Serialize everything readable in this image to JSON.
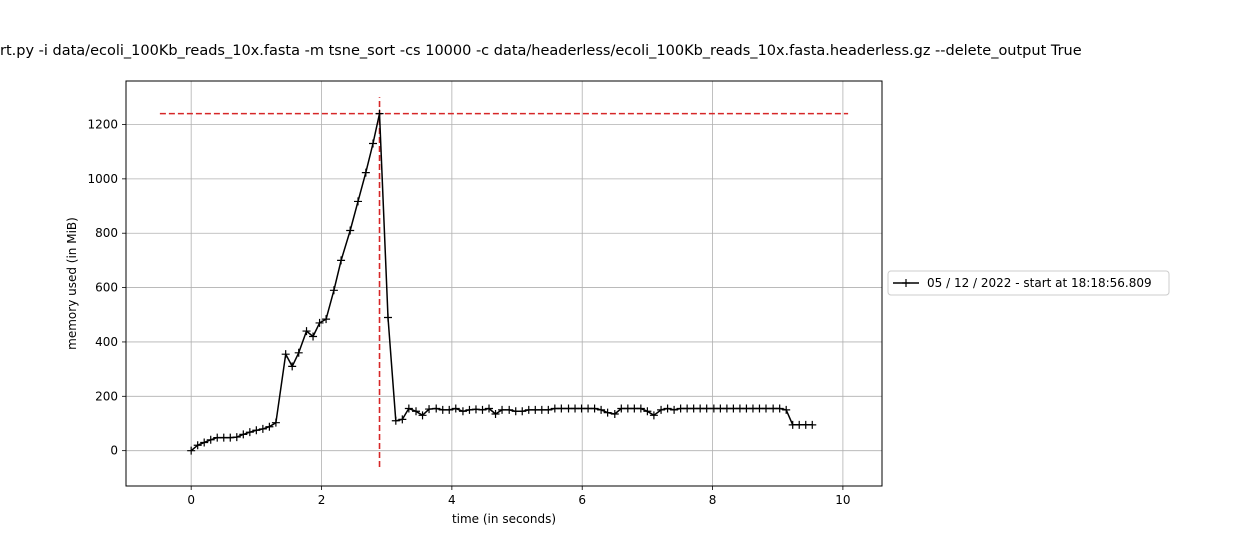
{
  "chart_data": {
    "type": "line",
    "title": "rt.py -i data/ecoli_100Kb_reads_10x.fasta -m tsne_sort -cs 10000 -c data/headerless/ecoli_100Kb_reads_10x.fasta.headerless.gz --delete_output True",
    "xlabel": "time (in seconds)",
    "ylabel": "memory used (in MiB)",
    "xlim": [
      -1.0,
      10.6
    ],
    "ylim": [
      -130,
      1360
    ],
    "xticks": [
      0,
      2,
      4,
      6,
      8,
      10
    ],
    "yticks": [
      0,
      200,
      400,
      600,
      800,
      1000,
      1200
    ],
    "grid": true,
    "legend_position": "right, outside plot",
    "max_memory_line": {
      "y": 1240,
      "x_range": [
        -0.48,
        10.08
      ],
      "color": "#d62728"
    },
    "max_time_line": {
      "x": 2.89,
      "y_range": [
        -60,
        1300
      ],
      "color": "#d62728"
    },
    "series": [
      {
        "name": "05 / 12 / 2022 - start at 18:18:56.809",
        "color": "#000000",
        "marker": "+",
        "x": [
          0.0,
          0.1,
          0.2,
          0.3,
          0.4,
          0.5,
          0.6,
          0.7,
          0.8,
          0.9,
          1.0,
          1.1,
          1.2,
          1.3,
          1.45,
          1.55,
          1.65,
          1.77,
          1.87,
          1.97,
          2.07,
          2.19,
          2.3,
          2.44,
          2.56,
          2.68,
          2.79,
          2.89,
          3.02,
          3.14,
          3.24,
          3.34,
          3.45,
          3.55,
          3.65,
          3.76,
          3.86,
          3.96,
          4.06,
          4.17,
          4.27,
          4.37,
          4.47,
          4.57,
          4.67,
          4.77,
          4.88,
          4.98,
          5.08,
          5.18,
          5.28,
          5.38,
          5.48,
          5.58,
          5.68,
          5.79,
          5.89,
          5.99,
          6.09,
          6.19,
          6.29,
          6.39,
          6.5,
          6.6,
          6.7,
          6.8,
          6.9,
          7.0,
          7.1,
          7.21,
          7.31,
          7.41,
          7.51,
          7.61,
          7.71,
          7.81,
          7.91,
          8.02,
          8.12,
          8.22,
          8.32,
          8.42,
          8.52,
          8.62,
          8.72,
          8.82,
          8.93,
          9.03,
          9.13,
          9.23,
          9.33,
          9.43,
          9.53
        ],
        "y": [
          0,
          20,
          30,
          40,
          48,
          48,
          48,
          50,
          60,
          68,
          75,
          80,
          88,
          103,
          355,
          310,
          360,
          440,
          420,
          470,
          484,
          590,
          700,
          810,
          917,
          1023,
          1130,
          1240,
          490,
          110,
          115,
          155,
          145,
          130,
          153,
          155,
          150,
          150,
          155,
          145,
          150,
          152,
          150,
          155,
          135,
          150,
          150,
          145,
          145,
          150,
          150,
          150,
          150,
          155,
          155,
          155,
          155,
          155,
          155,
          155,
          150,
          140,
          135,
          155,
          155,
          155,
          155,
          145,
          130,
          150,
          155,
          150,
          155,
          155,
          155,
          155,
          155,
          155,
          155,
          155,
          155,
          155,
          155,
          155,
          155,
          155,
          155,
          155,
          150,
          95,
          95,
          95,
          95
        ]
      }
    ]
  }
}
